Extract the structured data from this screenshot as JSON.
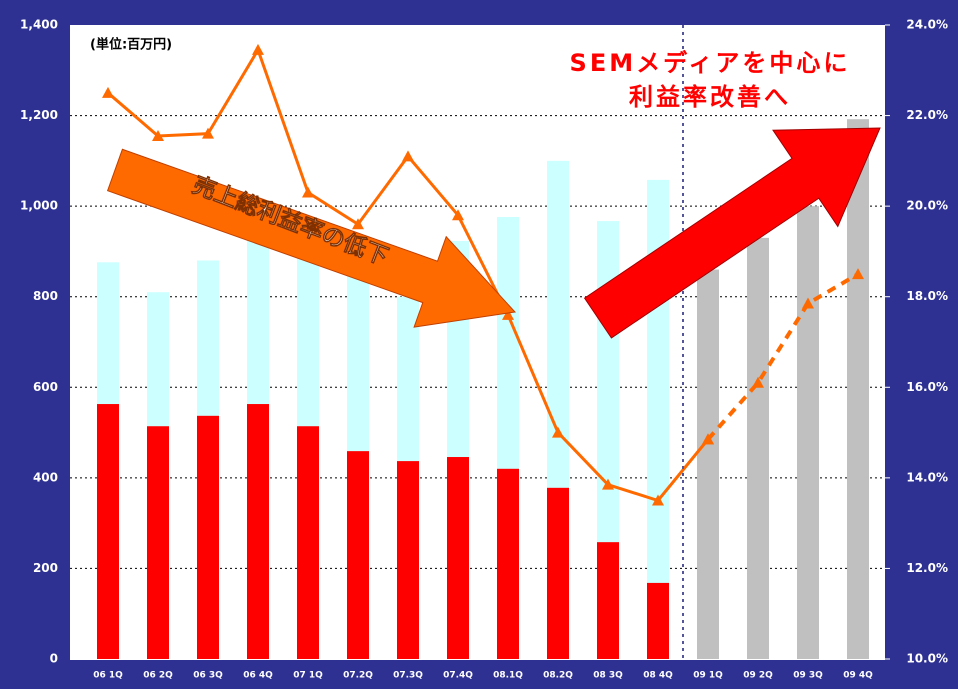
{
  "chart_data": {
    "type": "bar",
    "annotations": [
      "(単位:百万円)",
      "SEMメディアを中心に",
      "利益率改善へ",
      "売上総利益率の低下"
    ],
    "categories": [
      "06 1Q",
      "06 2Q",
      "06 3Q",
      "06 4Q",
      "07 1Q",
      "07.2Q",
      "07.3Q",
      "07.4Q",
      "08.1Q",
      "08.2Q",
      "08 3Q",
      "08 4Q",
      "09 1Q",
      "09 2Q",
      "09 3Q",
      "09 4Q"
    ],
    "series": [
      {
        "color": "#ccffff",
        "values": [
          876,
          810,
          880,
          925,
          890,
          850,
          800,
          923,
          976,
          1100,
          967,
          1058,
          null,
          null,
          null,
          null
        ]
      },
      {
        "color": "#c0c0c0",
        "values": [
          null,
          null,
          null,
          null,
          null,
          null,
          null,
          null,
          null,
          null,
          null,
          null,
          860,
          930,
          1000,
          1192
        ]
      },
      {
        "color": "#ff0000",
        "values": [
          563,
          514,
          537,
          563,
          514,
          459,
          437,
          446,
          420,
          378,
          258,
          168,
          null,
          null,
          null,
          null
        ]
      },
      {
        "type": "line",
        "axis": "y2",
        "color": "#ff6a00",
        "values": [
          22.5,
          21.55,
          21.6,
          23.45,
          20.3,
          19.6,
          21.1,
          19.8,
          17.6,
          15.0,
          13.85,
          13.5,
          14.85,
          null,
          null,
          null
        ]
      },
      {
        "type": "line",
        "axis": "y2",
        "color": "#ff6a00",
        "dashed": true,
        "values": [
          null,
          null,
          null,
          null,
          null,
          null,
          null,
          null,
          null,
          null,
          null,
          null,
          14.85,
          16.1,
          17.85,
          18.5
        ]
      }
    ],
    "ylim": [
      0,
      1400
    ],
    "yticks": [
      0,
      {
        "value": 200,
        "label": "200"
      },
      {
        "value": 400,
        "label": "400"
      },
      {
        "value": 600,
        "label": "600"
      },
      {
        "value": 800,
        "label": "800"
      },
      {
        "value": 1000,
        "label": "1,000"
      },
      {
        "value": 1200,
        "label": "1,200"
      },
      {
        "value": 1400,
        "label": "1,400"
      }
    ],
    "y2lim": [
      10,
      24
    ],
    "y2ticks": [
      {
        "value": 10,
        "label": "10.0%"
      },
      {
        "value": 12,
        "label": "12.0%"
      },
      {
        "value": 14,
        "label": "14.0%"
      },
      {
        "value": 16,
        "label": "16.0%"
      },
      {
        "value": 18,
        "label": "18.0%"
      },
      {
        "value": 20,
        "label": "20.0%"
      },
      {
        "value": 22,
        "label": "22.0%"
      },
      {
        "value": 24,
        "label": "24.0%"
      }
    ],
    "grid": true
  }
}
